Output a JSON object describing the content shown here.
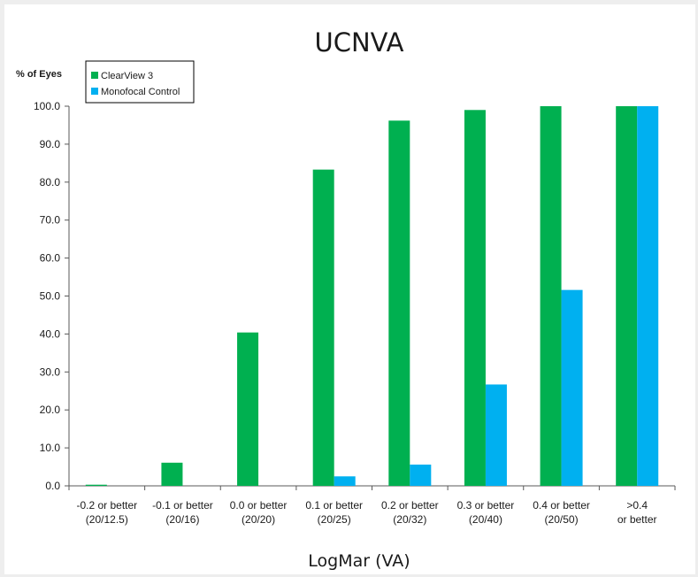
{
  "colors": {
    "series_1": "#00b050",
    "series_2": "#00b0f0",
    "axis": "#595959",
    "text": "#1a1a1a"
  },
  "chart_data": {
    "type": "bar",
    "title": "UCNVA",
    "xlabel": "LogMar (VA)",
    "ylabel": "% of Eyes",
    "ylim": [
      0,
      100
    ],
    "yticks": [
      "0.0",
      "10.0",
      "20.0",
      "30.0",
      "40.0",
      "50.0",
      "60.0",
      "70.0",
      "80.0",
      "90.0",
      "100.0"
    ],
    "categories": [
      [
        "-0.2 or better",
        "(20/12.5)"
      ],
      [
        "-0.1 or better",
        "(20/16)"
      ],
      [
        "0.0 or better",
        "(20/20)"
      ],
      [
        "0.1 or better",
        "(20/25)"
      ],
      [
        "0.2 or better",
        "(20/32)"
      ],
      [
        "0.3 or better",
        "(20/40)"
      ],
      [
        "0.4 or better",
        "(20/50)"
      ],
      [
        ">0.4",
        "or better"
      ]
    ],
    "series": [
      {
        "name": "ClearView 3",
        "values": [
          0.3,
          6.1,
          40.4,
          83.3,
          96.2,
          99.0,
          100.0,
          100.0
        ]
      },
      {
        "name": "Monofocal Control",
        "values": [
          0.0,
          0.0,
          0.0,
          2.5,
          5.6,
          26.7,
          51.6,
          100.0
        ]
      }
    ],
    "grid": false,
    "legend_position": "top-left"
  }
}
